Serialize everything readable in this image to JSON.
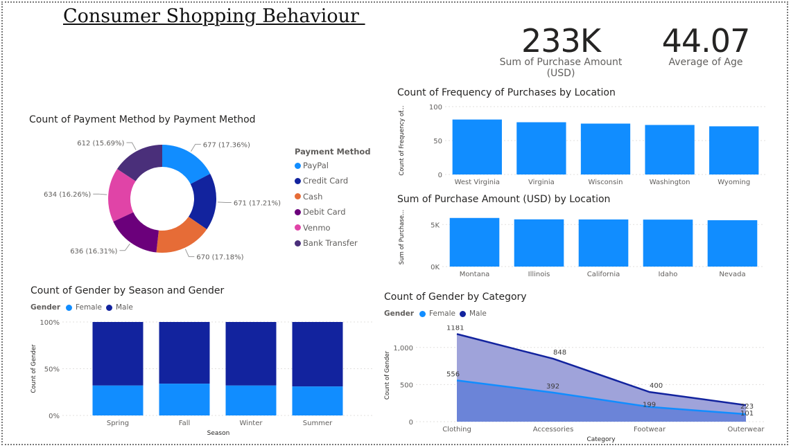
{
  "dashboard_title": "Consumer Shopping Behaviour ",
  "kpis": [
    {
      "value": "233K",
      "label": "Sum of Purchase Amount (USD)"
    },
    {
      "value": "44.07",
      "label": "Average of Age"
    }
  ],
  "colors": {
    "female": "#118dff",
    "male": "#12239e",
    "bar": "#118dff",
    "grid": "#e1dfdd",
    "text": "#605e5c"
  },
  "chart_data": [
    {
      "type": "pie",
      "title": "Count of Payment Method by Payment Method",
      "legend_title": "Payment Method",
      "donut": true,
      "slices": [
        {
          "name": "PayPal",
          "value": 677,
          "label": "677 (17.36%)",
          "color": "#118dff"
        },
        {
          "name": "Credit Card",
          "value": 671,
          "label": "671 (17.21%)",
          "color": "#12239e"
        },
        {
          "name": "Cash",
          "value": 670,
          "label": "670 (17.18%)",
          "color": "#e66c37"
        },
        {
          "name": "Debit Card",
          "value": 636,
          "label": "636 (16.31%)",
          "color": "#6b007b"
        },
        {
          "name": "Venmo",
          "value": 634,
          "label": "634 (16.26%)",
          "color": "#e044a7"
        },
        {
          "name": "Bank Transfer",
          "value": 612,
          "label": "612 (15.69%)",
          "color": "#4a2f7a"
        }
      ]
    },
    {
      "type": "bar",
      "title": "Count of Frequency of Purchases by Location",
      "ylabel": "Count of Frequency of...",
      "categories": [
        "West Virginia",
        "Virginia",
        "Wisconsin",
        "Washington",
        "Wyoming"
      ],
      "values": [
        81,
        77,
        75,
        73,
        71
      ],
      "ylim": [
        0,
        100
      ],
      "yticks": [
        "0",
        "50",
        "100"
      ],
      "ytick_values": [
        0,
        50,
        100
      ],
      "grid": true
    },
    {
      "type": "bar",
      "title": "Sum of Purchase Amount (USD) by Location",
      "ylabel": "Sum of Purchase...",
      "categories": [
        "Montana",
        "Illinois",
        "California",
        "Idaho",
        "Nevada"
      ],
      "values": [
        5784,
        5617,
        5605,
        5587,
        5514
      ],
      "ylim": [
        0,
        7000
      ],
      "yticks": [
        "0K",
        "5K"
      ],
      "ytick_values": [
        0,
        5000
      ],
      "grid": true
    },
    {
      "type": "bar",
      "stacked_percent": true,
      "title": "Count of Gender by Season and Gender",
      "legend_title": "Gender",
      "xlabel": "Season",
      "ylabel": "Count of Gender",
      "categories": [
        "Spring",
        "Fall",
        "Winter",
        "Summer"
      ],
      "yticks": [
        "0%",
        "50%",
        "100%"
      ],
      "series": [
        {
          "name": "Female",
          "values": [
            32,
            34,
            32,
            31
          ]
        },
        {
          "name": "Male",
          "values": [
            68,
            66,
            68,
            69
          ]
        }
      ]
    },
    {
      "type": "area",
      "title": "Count of Gender by Category",
      "legend_title": "Gender",
      "xlabel": "Category",
      "ylabel": "Count of Gender",
      "categories": [
        "Clothing",
        "Accessories",
        "Footwear",
        "Outerwear"
      ],
      "ylim": [
        0,
        1250
      ],
      "yticks": [
        "0",
        "500",
        "1,000"
      ],
      "ytick_values": [
        0,
        500,
        1000
      ],
      "series": [
        {
          "name": "Female",
          "values": [
            556,
            392,
            199,
            101
          ],
          "labels": [
            "556",
            "392",
            "199",
            "101"
          ]
        },
        {
          "name": "Male",
          "values": [
            1181,
            848,
            400,
            223
          ],
          "labels": [
            "1181",
            "848",
            "400",
            "223"
          ]
        }
      ]
    }
  ]
}
